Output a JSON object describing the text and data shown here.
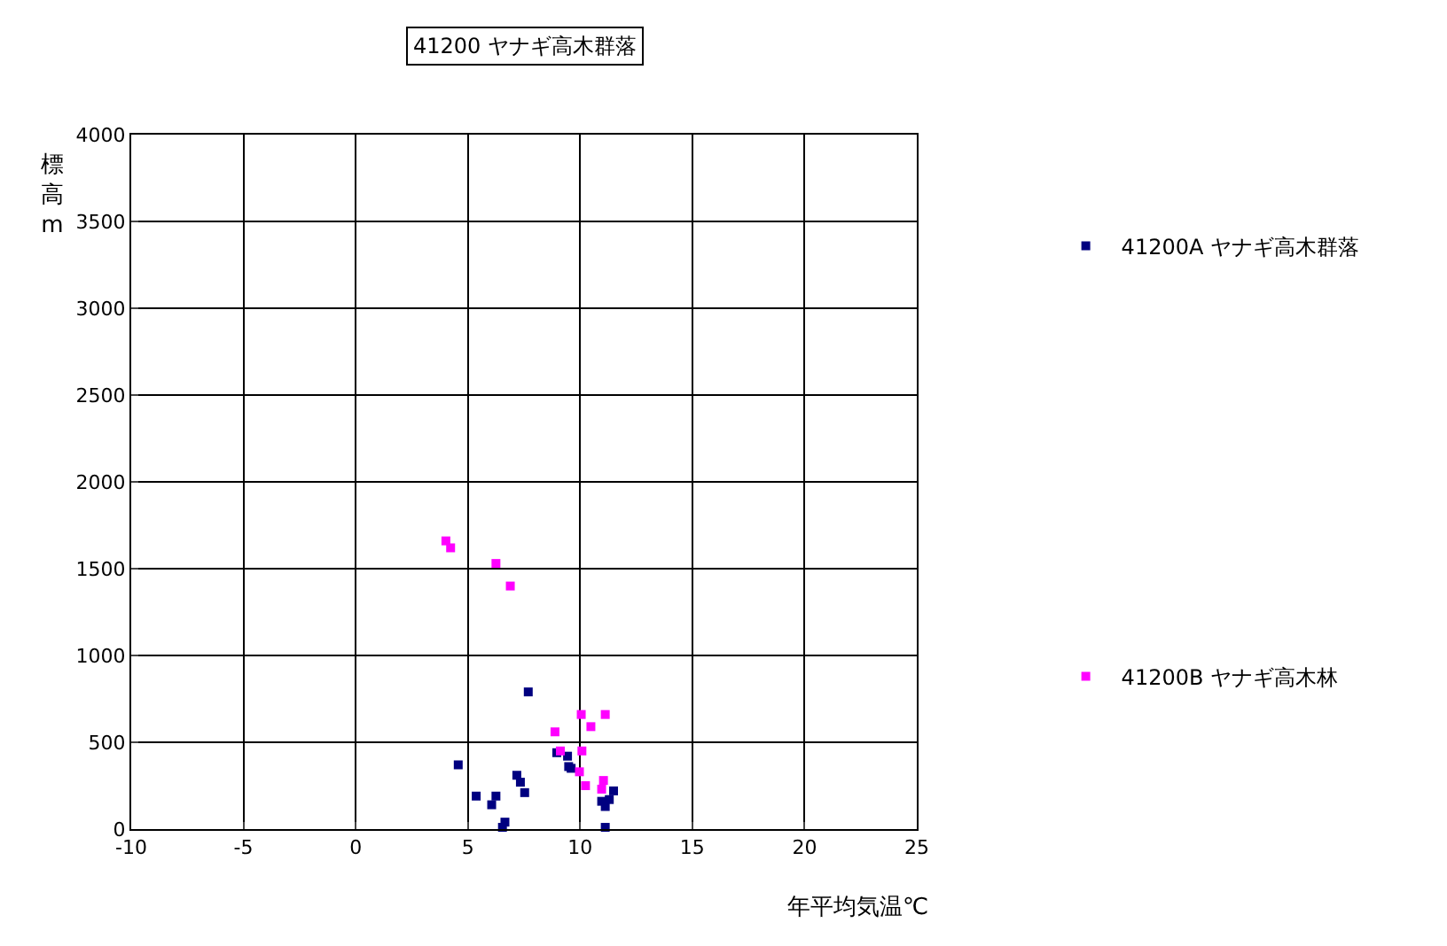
{
  "chart_data": {
    "type": "scatter",
    "title": "41200 ヤナギ高木群落",
    "xlabel": "年平均気温℃",
    "ylabel": "標高m",
    "xlim": [
      -10,
      25
    ],
    "xticks": [
      -10,
      -5,
      0,
      5,
      10,
      15,
      20,
      25
    ],
    "ylim": [
      0,
      4000
    ],
    "yticks": [
      0,
      500,
      1000,
      1500,
      2000,
      2500,
      3000,
      3500,
      4000
    ],
    "grid": true,
    "legend": "right",
    "marker": "square",
    "series": [
      {
        "name": "41200A ヤナギ高木群落",
        "color": "#000080",
        "x": [
          7.69,
          4.57,
          8.96,
          9.44,
          9.49,
          9.6,
          7.18,
          7.34,
          7.53,
          5.37,
          6.25,
          6.06,
          6.65,
          6.54,
          11.49,
          10.96,
          11.3,
          11.12,
          11.12
        ],
        "values": [
          790,
          370,
          440,
          420,
          360,
          350,
          310,
          270,
          210,
          190,
          190,
          140,
          40,
          10,
          220,
          160,
          170,
          130,
          10
        ]
      },
      {
        "name": "41200B ヤナギ高木林",
        "color": "#ff00ff",
        "x": [
          4.02,
          4.23,
          6.25,
          6.89,
          10.05,
          11.12,
          10.48,
          8.88,
          9.12,
          10.08,
          9.97,
          10.24,
          11.04,
          10.96
        ],
        "values": [
          1660,
          1620,
          1530,
          1400,
          660,
          660,
          590,
          560,
          450,
          450,
          330,
          250,
          280,
          230
        ]
      }
    ]
  }
}
